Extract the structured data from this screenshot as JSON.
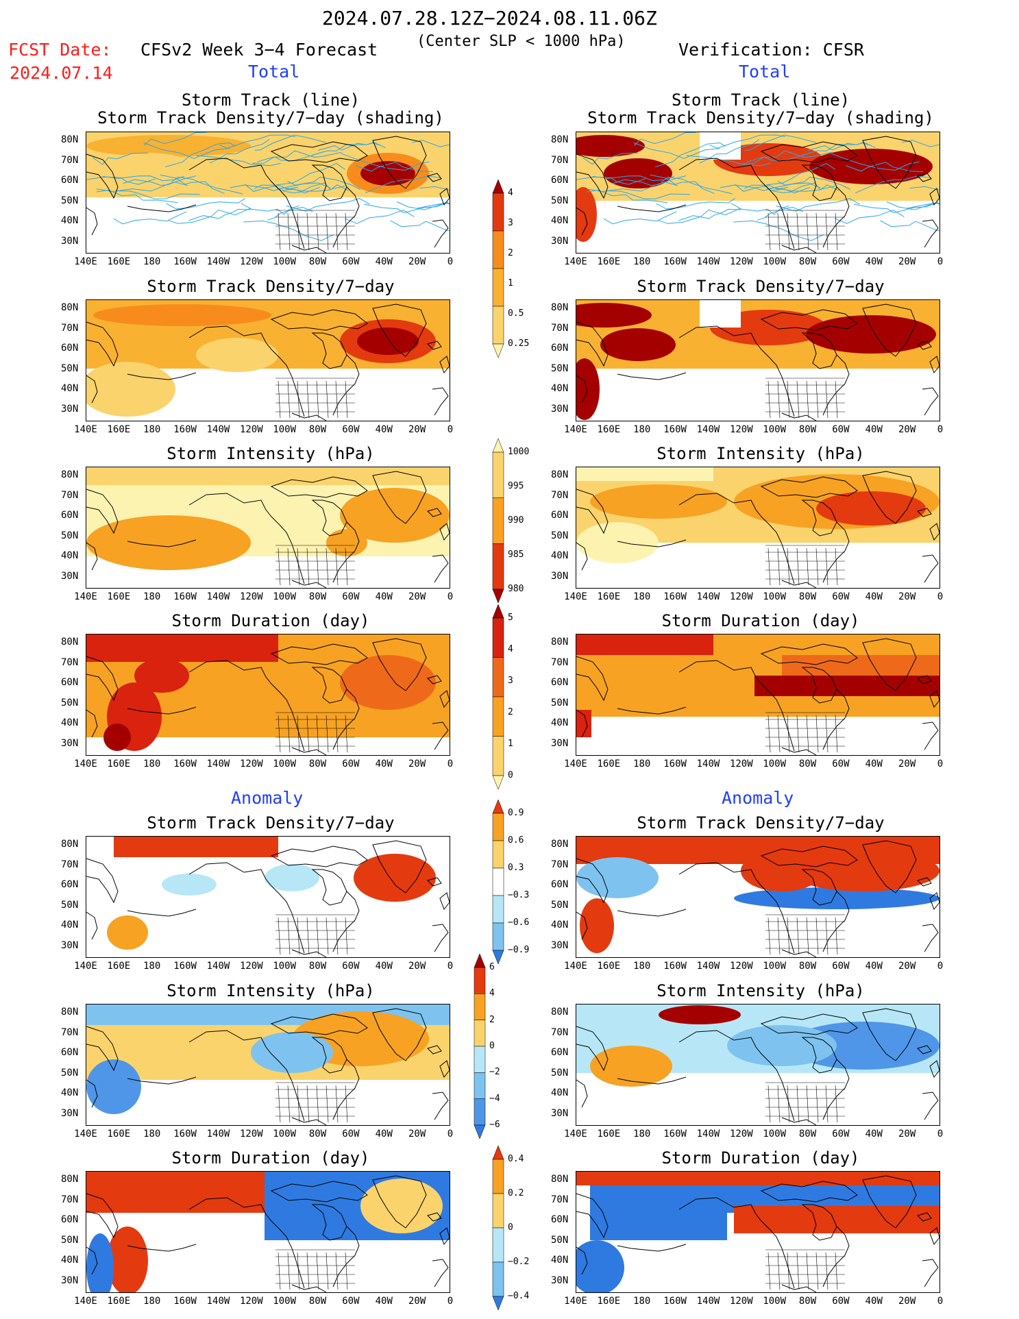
{
  "header": {
    "date_range": "2024.07.28.12Z−2024.08.11.06Z",
    "fcst_label": "FCST Date:",
    "fcst_date": "2024.07.14",
    "left_title": "CFSv2 Week 3−4 Forecast",
    "subtitle": "(Center SLP < 1000 hPa)",
    "right_title": "Verification: CFSR"
  },
  "sections": {
    "total": "Total",
    "anomaly": "Anomaly"
  },
  "panel_titles": {
    "track_line": "Storm Track (line)",
    "track_shading": "Storm Track Density/7−day (shading)",
    "density": "Storm Track Density/7−day",
    "intensity": "Storm Intensity (hPa)",
    "duration": "Storm Duration (day)"
  },
  "axes": {
    "lat_labels": [
      "80N",
      "70N",
      "60N",
      "50N",
      "40N",
      "30N"
    ],
    "lon_labels": [
      "140E",
      "160E",
      "180",
      "160W",
      "140W",
      "120W",
      "100W",
      "80W",
      "60W",
      "40W",
      "20W",
      "0"
    ]
  },
  "colorbars": {
    "density": {
      "labels": [
        "4",
        "3",
        "2",
        "1",
        "0.5",
        "0.25"
      ],
      "colors": [
        "#a50000",
        "#e33a10",
        "#f78c1c",
        "#f9b131",
        "#fbd36c",
        "#fdf3b0"
      ]
    },
    "intensity": {
      "labels": [
        "1000",
        "995",
        "990",
        "985",
        "980"
      ],
      "colors": [
        "#fdf3b0",
        "#fbd36c",
        "#f7a222",
        "#e33a10",
        "#a50000"
      ]
    },
    "duration": {
      "labels": [
        "5",
        "4",
        "3",
        "2",
        "1",
        "0"
      ],
      "colors": [
        "#a50000",
        "#d9230f",
        "#ee6a1a",
        "#f7a222",
        "#fbd36c",
        "#fdf3b0"
      ]
    },
    "anom_density": {
      "labels": [
        "0.9",
        "0.6",
        "0.3",
        "−0.3",
        "−0.6",
        "−0.9"
      ],
      "colors": [
        "#e33a10",
        "#f7a222",
        "#fbd36c",
        "#ffffff",
        "#b7e7f7",
        "#7ec3ef",
        "#2f7ae0"
      ]
    },
    "anom_intensity": {
      "labels": [
        "6",
        "4",
        "2",
        "0",
        "−2",
        "−4",
        "−6"
      ],
      "colors": [
        "#a50000",
        "#e33a10",
        "#f7a222",
        "#fbd36c",
        "#b7e7f7",
        "#7ec3ef",
        "#4f96e8",
        "#2f7ae0"
      ]
    },
    "anom_duration": {
      "labels": [
        "0.4",
        "0.2",
        "0",
        "−0.2",
        "−0.4"
      ],
      "colors": [
        "#e33a10",
        "#f7a222",
        "#fbd36c",
        "#b7e7f7",
        "#7ec3ef",
        "#2f7ae0"
      ]
    }
  },
  "palette": {
    "track_line": "#2aa7e8",
    "coast": "#000000",
    "title_red": "#ff1a1a",
    "title_blue": "#1f3dff"
  }
}
